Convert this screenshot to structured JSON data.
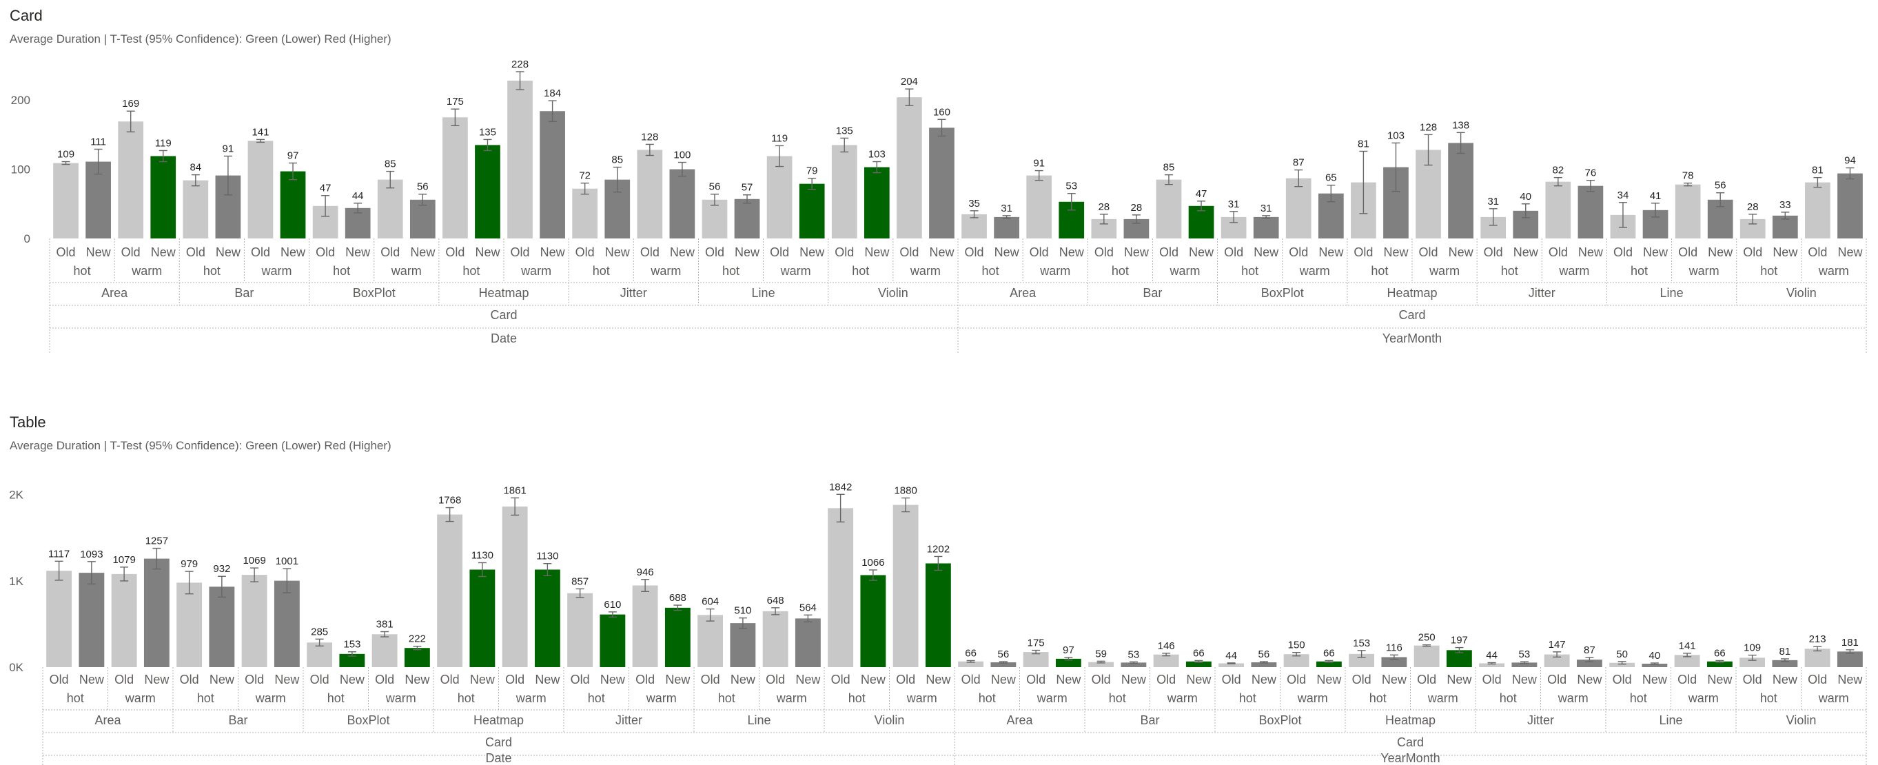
{
  "colors": {
    "old": "#c8c8c8",
    "new_gray": "#808080",
    "new_green": "#006400",
    "text": "#252423",
    "subtle": "#605e5c",
    "grid": "#b3b3b3"
  },
  "labels": {
    "pair": [
      "Old",
      "New"
    ],
    "temps": [
      "hot",
      "warm"
    ]
  },
  "charts": [
    {
      "title": "Card",
      "subtitle": "Average Duration | T-Test (95% Confidence): Green (Lower) Red (Higher)"
    },
    {
      "title": "Table",
      "subtitle": "Average Duration | T-Test (95% Confidence): Green (Lower) Red (Higher)"
    }
  ],
  "chart_data": [
    {
      "type": "bar",
      "title": "Card",
      "subtitle": "Average Duration | T-Test (95% Confidence): Green (Lower) Red (Higher)",
      "ylim": [
        0,
        240
      ],
      "yticks": [
        {
          "v": 0,
          "label": "0"
        },
        {
          "v": 100,
          "label": "100"
        },
        {
          "v": 200,
          "label": "200"
        }
      ],
      "level_labels": {
        "category": "Card",
        "groups": [
          "Date",
          "YearMonth"
        ]
      },
      "charts_types": [
        "Area",
        "Bar",
        "BoxPlot",
        "Heatmap",
        "Jitter",
        "Line",
        "Violin"
      ],
      "values": [
        [
          [
            109,
            111,
            169,
            119
          ],
          [
            84,
            91,
            141,
            97
          ],
          [
            47,
            44,
            85,
            56
          ],
          [
            175,
            135,
            228,
            184
          ],
          [
            72,
            85,
            128,
            100
          ],
          [
            56,
            57,
            119,
            79
          ],
          [
            135,
            103,
            204,
            160
          ]
        ],
        [
          [
            35,
            31,
            91,
            53
          ],
          [
            28,
            28,
            85,
            47
          ],
          [
            31,
            31,
            87,
            65
          ],
          [
            81,
            103,
            128,
            138
          ],
          [
            31,
            40,
            82,
            76
          ],
          [
            34,
            41,
            78,
            56
          ],
          [
            28,
            33,
            81,
            94
          ]
        ]
      ],
      "errors": [
        [
          [
            2,
            18,
            15,
            8
          ],
          [
            8,
            28,
            2,
            12
          ],
          [
            15,
            7,
            12,
            8
          ],
          [
            12,
            8,
            13,
            15
          ],
          [
            8,
            18,
            8,
            10
          ],
          [
            8,
            6,
            15,
            8
          ],
          [
            10,
            8,
            12,
            12
          ]
        ],
        [
          [
            5,
            2,
            7,
            12
          ],
          [
            7,
            6,
            7,
            7
          ],
          [
            8,
            2,
            12,
            12
          ],
          [
            45,
            35,
            22,
            15
          ],
          [
            12,
            10,
            6,
            8
          ],
          [
            18,
            10,
            2,
            10
          ],
          [
            7,
            5,
            7,
            8
          ]
        ]
      ],
      "green": [
        [
          [
            false,
            false,
            false,
            true
          ],
          [
            false,
            false,
            false,
            true
          ],
          [
            false,
            false,
            false,
            false
          ],
          [
            false,
            true,
            false,
            false
          ],
          [
            false,
            false,
            false,
            false
          ],
          [
            false,
            false,
            false,
            true
          ],
          [
            false,
            true,
            false,
            false
          ]
        ],
        [
          [
            false,
            false,
            false,
            true
          ],
          [
            false,
            false,
            false,
            true
          ],
          [
            false,
            false,
            false,
            false
          ],
          [
            false,
            false,
            false,
            false
          ],
          [
            false,
            false,
            false,
            false
          ],
          [
            false,
            false,
            false,
            false
          ],
          [
            false,
            false,
            false,
            false
          ]
        ]
      ]
    },
    {
      "type": "bar",
      "title": "Table",
      "subtitle": "Average Duration | T-Test (95% Confidence): Green (Lower) Red (Higher)",
      "ylim": [
        0,
        2100
      ],
      "yticks": [
        {
          "v": 0,
          "label": "0K"
        },
        {
          "v": 1000,
          "label": "1K"
        },
        {
          "v": 2000,
          "label": "2K"
        }
      ],
      "level_labels": {
        "category": "Card",
        "groups": [
          "Date",
          "YearMonth"
        ]
      },
      "charts_types": [
        "Area",
        "Bar",
        "BoxPlot",
        "Heatmap",
        "Jitter",
        "Line",
        "Violin"
      ],
      "values": [
        [
          [
            1117,
            1093,
            1079,
            1257
          ],
          [
            979,
            932,
            1069,
            1001
          ],
          [
            285,
            153,
            381,
            222
          ],
          [
            1768,
            1130,
            1861,
            1130
          ],
          [
            857,
            610,
            946,
            688
          ],
          [
            604,
            510,
            648,
            564
          ],
          [
            1842,
            1066,
            1880,
            1202
          ]
        ],
        [
          [
            66,
            56,
            175,
            97
          ],
          [
            59,
            53,
            146,
            66
          ],
          [
            44,
            56,
            150,
            66
          ],
          [
            153,
            116,
            250,
            197
          ],
          [
            44,
            53,
            147,
            87
          ],
          [
            50,
            40,
            141,
            66
          ],
          [
            109,
            81,
            213,
            181
          ]
        ]
      ],
      "errors": [
        [
          [
            110,
            130,
            80,
            120
          ],
          [
            130,
            120,
            80,
            140
          ],
          [
            40,
            25,
            30,
            20
          ],
          [
            80,
            80,
            100,
            70
          ],
          [
            50,
            30,
            70,
            30
          ],
          [
            70,
            60,
            40,
            40
          ],
          [
            160,
            60,
            80,
            80
          ]
        ],
        [
          [
            10,
            8,
            20,
            15
          ],
          [
            10,
            8,
            15,
            10
          ],
          [
            5,
            8,
            20,
            10
          ],
          [
            40,
            25,
            8,
            30
          ],
          [
            8,
            10,
            30,
            25
          ],
          [
            15,
            8,
            20,
            10
          ],
          [
            30,
            15,
            25,
            20
          ]
        ]
      ],
      "green": [
        [
          [
            false,
            false,
            false,
            false
          ],
          [
            false,
            false,
            false,
            false
          ],
          [
            false,
            true,
            false,
            true
          ],
          [
            false,
            true,
            false,
            true
          ],
          [
            false,
            true,
            false,
            true
          ],
          [
            false,
            false,
            false,
            false
          ],
          [
            false,
            true,
            false,
            true
          ]
        ],
        [
          [
            false,
            false,
            false,
            true
          ],
          [
            false,
            false,
            false,
            true
          ],
          [
            false,
            false,
            false,
            true
          ],
          [
            false,
            false,
            false,
            true
          ],
          [
            false,
            false,
            false,
            false
          ],
          [
            false,
            false,
            false,
            true
          ],
          [
            false,
            false,
            false,
            false
          ]
        ]
      ]
    }
  ]
}
